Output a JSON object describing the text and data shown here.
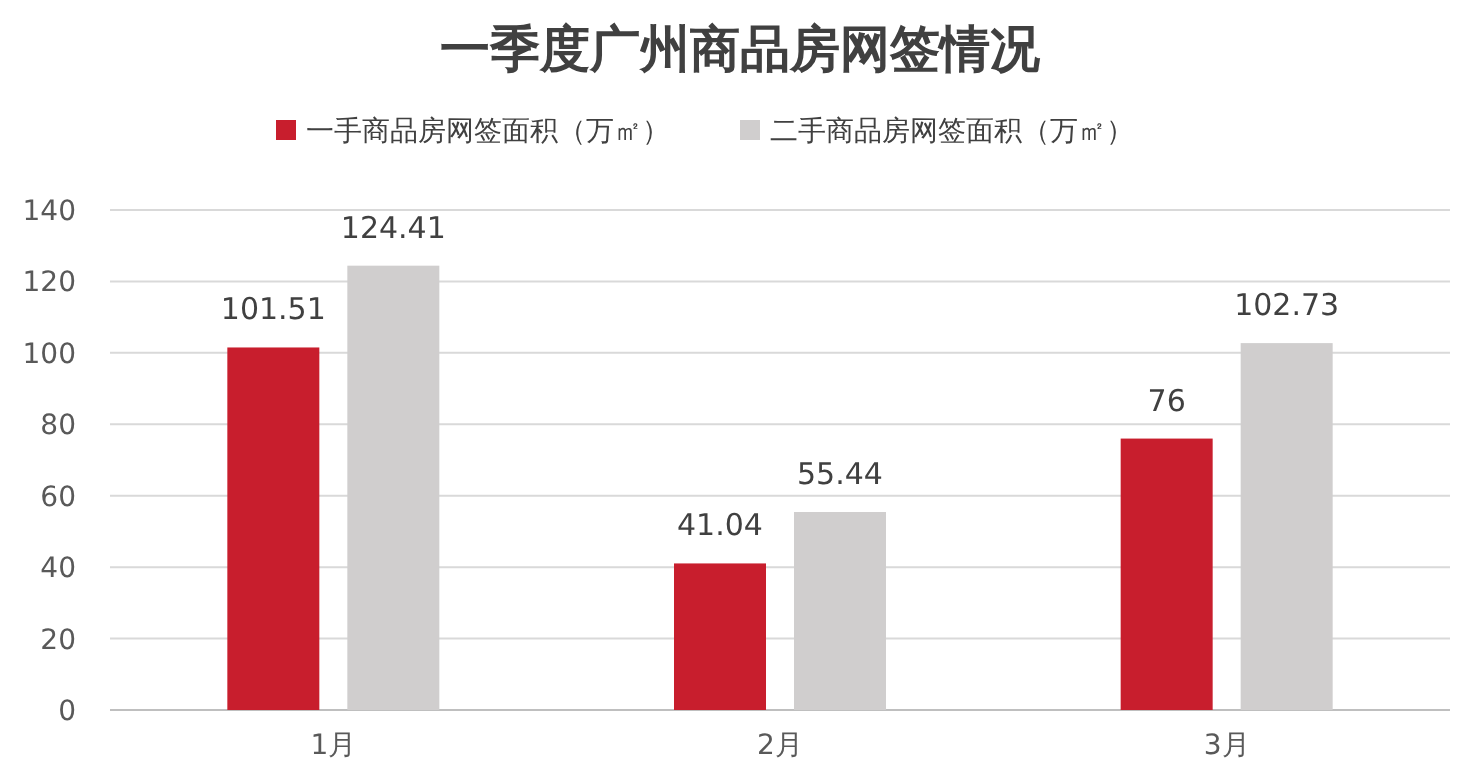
{
  "chart_data": {
    "type": "bar",
    "title": "一季度广州商品房网签情况",
    "categories": [
      "1月",
      "2月",
      "3月"
    ],
    "series": [
      {
        "name": "一手商品房网签面积（万㎡）",
        "color": "#c81e2d",
        "values": [
          101.51,
          41.04,
          76
        ]
      },
      {
        "name": "二手商品房网签面积（万㎡）",
        "color": "#d0cece",
        "values": [
          124.41,
          55.44,
          102.73
        ]
      }
    ],
    "ylim": [
      0,
      140
    ],
    "yticks": [
      0,
      20,
      40,
      60,
      80,
      100,
      120,
      140
    ],
    "grid": "y",
    "legend": "top",
    "data_labels": true
  }
}
